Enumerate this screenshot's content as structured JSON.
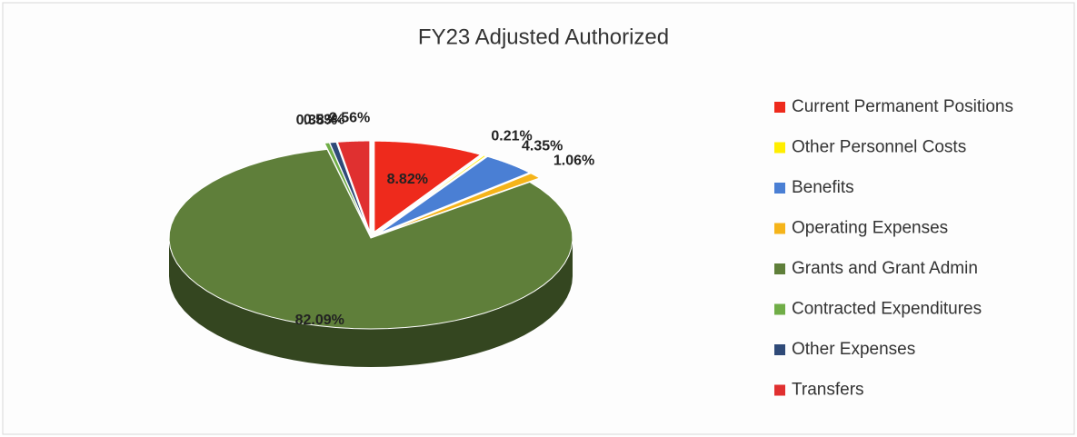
{
  "chart_data": {
    "type": "pie",
    "title": "FY23 Adjusted Authorized",
    "categories": [
      "Current Permanent Positions",
      "Other Personnel Costs",
      "Benefits",
      "Operating Expenses",
      "Grants and Grant Admin",
      "Contracted Expenditures",
      "Other Expenses",
      "Transfers"
    ],
    "values": [
      8.82,
      0.21,
      4.35,
      1.06,
      82.09,
      0.38,
      0.53,
      2.56
    ],
    "value_labels": [
      "8.82%",
      "0.21%",
      "4.35%",
      "1.06%",
      "82.09%",
      "0.38%",
      "0.53%",
      "2.56%"
    ],
    "colors": [
      "#ee2a1c",
      "#ffee00",
      "#4a7fd4",
      "#f5b41a",
      "#5f7f3a",
      "#70ad47",
      "#2f4a78",
      "#e03030"
    ],
    "legend": "right"
  }
}
